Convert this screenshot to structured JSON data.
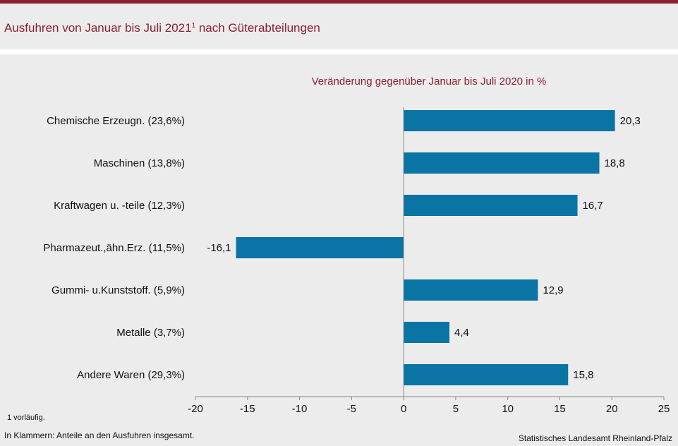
{
  "header": {
    "title": "Ausfuhren von Januar bis Juli 2021",
    "title_sup": "1",
    "title_rest": " nach Güterabteilungen"
  },
  "chart_data": {
    "type": "bar",
    "orientation": "horizontal",
    "title": "Veränderung gegenüber Januar bis Juli 2020 in %",
    "categories": [
      "Chemische Erzeugn. (23,6%)",
      "Maschinen (13,8%)",
      "Kraftwagen u. -teile (12,3%)",
      "Pharmazeut.,ähn.Erz. (11,5%)",
      "Gummi- u.Kunststoff. (5,9%)",
      "Metalle (3,7%)",
      "Andere Waren (29,3%)"
    ],
    "values": [
      20.3,
      18.8,
      16.7,
      -16.1,
      12.9,
      4.4,
      15.8
    ],
    "value_labels": [
      "20,3",
      "18,8",
      "16,7",
      "-16,1",
      "12,9",
      "4,4",
      "15,8"
    ],
    "xlim": [
      -20,
      25
    ],
    "xticks": [
      -20,
      -15,
      -10,
      -5,
      0,
      5,
      10,
      15,
      20,
      25
    ],
    "xtick_labels": [
      "-20",
      "-15",
      "-10",
      "-5",
      "0",
      "5",
      "10",
      "15",
      "20",
      "25"
    ],
    "grid": false,
    "colors": {
      "bar": "#0a74a4",
      "title": "#8b1f33"
    }
  },
  "footer": {
    "footnote": "1 vorläufig.",
    "note": "In Klammern: Anteile an den Ausfuhren insgesamt.",
    "source": "Statistisches Landesamt Rheinland-Pfalz"
  }
}
